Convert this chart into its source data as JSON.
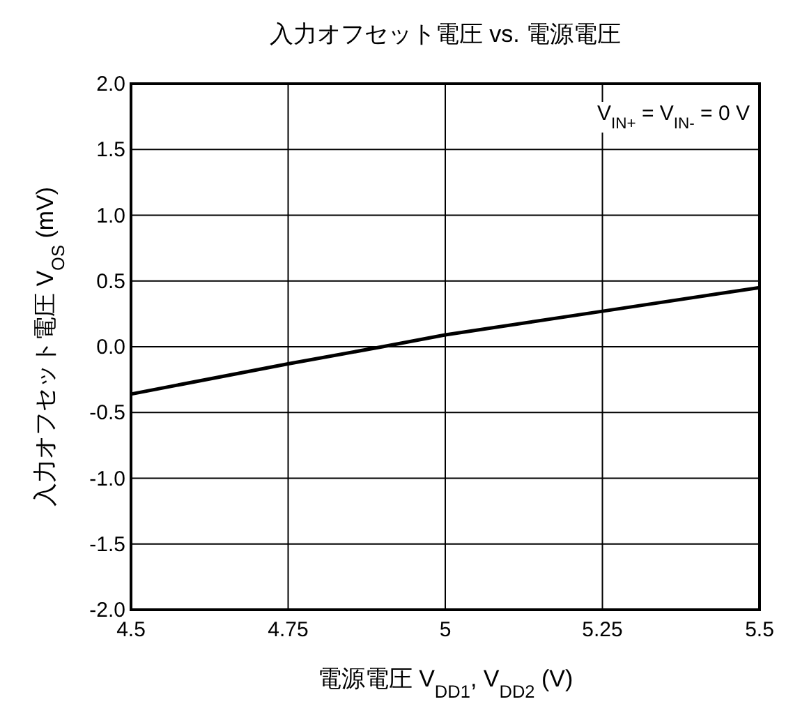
{
  "chart_data": {
    "type": "line",
    "title": "入力オフセット電圧 vs. 電源電圧",
    "xlabel": "電源電圧 V$_{DD1}$, V$_{DD2}$ (V)",
    "ylabel": "入力オフセット電圧 V$_{OS}$ (mV)",
    "annotations": [
      "V$_{IN+}$ = V$_{IN-}$ = 0 V"
    ],
    "x": [
      4.5,
      4.75,
      4.9,
      5,
      5.25,
      5.5
    ],
    "series": [
      {
        "color": "#000000",
        "values": [
          -0.36,
          -0.13,
          0.0,
          0.09,
          0.27,
          0.45
        ]
      }
    ],
    "xlim": [
      4.5,
      5.5
    ],
    "xticks": [
      4.5,
      4.75,
      5,
      5.25,
      5.5
    ],
    "ylim": [
      -2,
      2
    ],
    "yticks": [
      {
        "value": -2,
        "label": "-2.0"
      },
      {
        "value": -1.5,
        "label": "-1.5"
      },
      {
        "value": -1,
        "label": "-1.0"
      },
      {
        "value": -0.5,
        "label": "-0.5"
      },
      {
        "value": 0,
        "label": "0.0"
      },
      {
        "value": 0.5,
        "label": "0.5"
      },
      {
        "value": 1,
        "label": "1.0"
      },
      {
        "value": 1.5,
        "label": "1.5"
      },
      {
        "value": 2,
        "label": "2.0"
      }
    ],
    "grid": true,
    "marker": "none",
    "line_style": "solid"
  }
}
